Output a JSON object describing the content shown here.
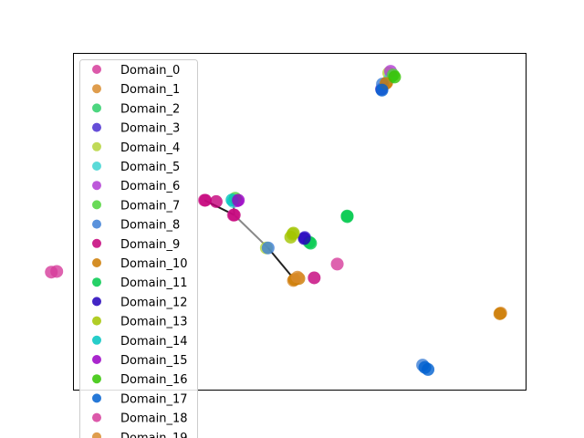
{
  "chart_data": {
    "type": "scatter",
    "title": "",
    "xlabel": "",
    "ylabel": "",
    "xlim": [
      0,
      100
    ],
    "ylim": [
      0,
      100
    ],
    "grid": false,
    "axis_ticks": false,
    "legend_position": "upper-left",
    "series": [
      {
        "name": "Domain_0",
        "color": "#d63c9b",
        "points": [
          [
            28.9,
            56.4
          ],
          [
            35.3,
            52.0
          ],
          [
            58.3,
            37.4
          ]
        ]
      },
      {
        "name": "Domain_1",
        "color": "#d98c2e",
        "points": [
          [
            48.6,
            32.5
          ],
          [
            69.3,
            91.5
          ],
          [
            94.5,
            22.8
          ]
        ]
      },
      {
        "name": "Domain_2",
        "color": "#2ecf6a",
        "points": [
          [
            52.1,
            43.9
          ],
          [
            60.5,
            51.5
          ],
          [
            70.3,
            93.4
          ]
        ]
      },
      {
        "name": "Domain_3",
        "color": "#4b2fd1",
        "points": [
          [
            51.1,
            45.3
          ],
          [
            68.1,
            89.5
          ]
        ]
      },
      {
        "name": "Domain_4",
        "color": "#b5d43a",
        "points": [
          [
            48.4,
            46.3
          ],
          [
            69.7,
            94.3
          ],
          [
            42.6,
            42.2
          ]
        ]
      },
      {
        "name": "Domain_5",
        "color": "#3dd4d1",
        "points": [
          [
            35.3,
            56.0
          ],
          [
            70.1,
            93.0
          ]
        ]
      },
      {
        "name": "Domain_6",
        "color": "#b23cd4",
        "points": [
          [
            36.1,
            56.2
          ],
          [
            70.1,
            94.8
          ]
        ]
      },
      {
        "name": "Domain_7",
        "color": "#4fd43a",
        "points": [
          [
            35.7,
            57.0
          ],
          [
            70.7,
            93.7
          ]
        ]
      },
      {
        "name": "Domain_8",
        "color": "#3d7fd6",
        "points": [
          [
            43.0,
            42.2
          ],
          [
            77.2,
            7.3
          ],
          [
            68.3,
            91.0
          ]
        ]
      },
      {
        "name": "Domain_9",
        "color": "#c4007a",
        "points": [
          [
            31.5,
            56.0
          ],
          [
            53.2,
            33.3
          ],
          [
            29.1,
            56.4
          ],
          [
            35.5,
            52.0
          ]
        ]
      },
      {
        "name": "Domain_10",
        "color": "#cc7a00",
        "points": [
          [
            49.8,
            33.1
          ],
          [
            48.8,
            32.8
          ],
          [
            94.3,
            22.6
          ],
          [
            69.1,
            91.2
          ]
        ]
      },
      {
        "name": "Domain_11",
        "color": "#00c94c",
        "points": [
          [
            60.5,
            51.7
          ],
          [
            52.4,
            43.6
          ]
        ]
      },
      {
        "name": "Domain_12",
        "color": "#2200bb",
        "points": [
          [
            51.0,
            45.0
          ]
        ]
      },
      {
        "name": "Domain_13",
        "color": "#a3c400",
        "points": [
          [
            48.6,
            46.6
          ],
          [
            48.0,
            45.4
          ]
        ]
      },
      {
        "name": "Domain_14",
        "color": "#00c4c0",
        "points": [
          [
            35.0,
            56.5
          ]
        ]
      },
      {
        "name": "Domain_15",
        "color": "#9a00c4",
        "points": [
          [
            36.4,
            56.4
          ]
        ]
      },
      {
        "name": "Domain_16",
        "color": "#33c400",
        "points": [
          [
            71.0,
            93.1
          ]
        ]
      },
      {
        "name": "Domain_17",
        "color": "#0060d0",
        "points": [
          [
            78.4,
            6.0
          ],
          [
            77.7,
            6.6
          ],
          [
            68.2,
            89.2
          ]
        ]
      },
      {
        "name": "Domain_18",
        "color": "#d63c9b",
        "points": [
          [
            -5.0,
            35.0
          ],
          [
            -3.8,
            35.2
          ]
        ]
      },
      {
        "name": "Domain_19",
        "color": "#d98c2e",
        "points": [
          [
            49.5,
            33.5
          ]
        ]
      }
    ],
    "connections": [
      {
        "from": [
          28.9,
          56.4
        ],
        "to": [
          35.5,
          52.0
        ],
        "color": "#222222"
      },
      {
        "from": [
          35.5,
          52.0
        ],
        "to": [
          43.0,
          42.2
        ],
        "color": "#888888"
      },
      {
        "from": [
          43.0,
          42.2
        ],
        "to": [
          48.8,
          32.8
        ],
        "color": "#222222"
      },
      {
        "from": [
          35.3,
          56.0
        ],
        "to": [
          35.5,
          52.0
        ],
        "color": "#555555"
      },
      {
        "from": [
          70.3,
          93.4
        ],
        "to": [
          68.2,
          89.2
        ],
        "color": "#444444"
      }
    ]
  }
}
